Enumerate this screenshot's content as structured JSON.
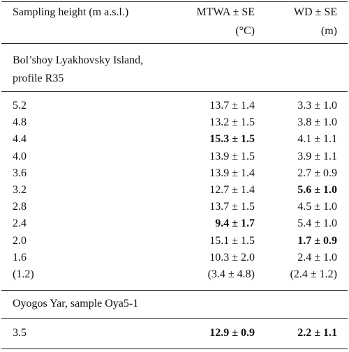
{
  "header": {
    "height": "Sampling height (m a.s.l.)",
    "mtwa": [
      "MTWA ± SE",
      "(°C)"
    ],
    "wd": [
      "WD ± SE",
      "(m)"
    ]
  },
  "sections": [
    {
      "title": [
        "Bol’shoy Lyakhovsky Island,",
        "profile R35"
      ],
      "rows": [
        {
          "cells": [
            "5.2",
            "13.7 ± 1.4",
            "3.3 ± 1.0"
          ],
          "bold": []
        },
        {
          "cells": [
            "4.8",
            "13.2 ± 1.5",
            "3.8 ± 1.0"
          ],
          "bold": []
        },
        {
          "cells": [
            "4.4",
            "15.3 ± 1.5",
            "4.1 ± 1.1"
          ],
          "bold": [
            1
          ]
        },
        {
          "cells": [
            "4.0",
            "13.9 ± 1.5",
            "3.9 ± 1.1"
          ],
          "bold": []
        },
        {
          "cells": [
            "3.6",
            "13.9 ± 1.4",
            "2.7 ± 0.9"
          ],
          "bold": []
        },
        {
          "cells": [
            "3.2",
            "12.7 ± 1.4",
            "5.6 ± 1.0"
          ],
          "bold": [
            2
          ]
        },
        {
          "cells": [
            "2.8",
            "13.7 ± 1.5",
            "4.5 ± 1.0"
          ],
          "bold": []
        },
        {
          "cells": [
            "2.4",
            "9.4 ± 1.7",
            "5.4 ± 1.0"
          ],
          "bold": [
            1
          ]
        },
        {
          "cells": [
            "2.0",
            "15.1 ± 1.5",
            "1.7 ± 0.9"
          ],
          "bold": [
            2
          ]
        },
        {
          "cells": [
            "1.6",
            "10.3 ± 2.0",
            "2.4 ± 1.0"
          ],
          "bold": []
        },
        {
          "cells": [
            "(1.2)",
            "(3.4 ± 4.8)",
            "(2.4 ± 1.2)"
          ],
          "bold": []
        }
      ]
    },
    {
      "title": [
        "Oyogos Yar, sample Oya5-1"
      ],
      "rows": [
        {
          "cells": [
            "3.5",
            "12.9 ± 0.9",
            "2.2 ± 1.1"
          ],
          "bold": [
            1,
            2
          ]
        }
      ]
    }
  ]
}
